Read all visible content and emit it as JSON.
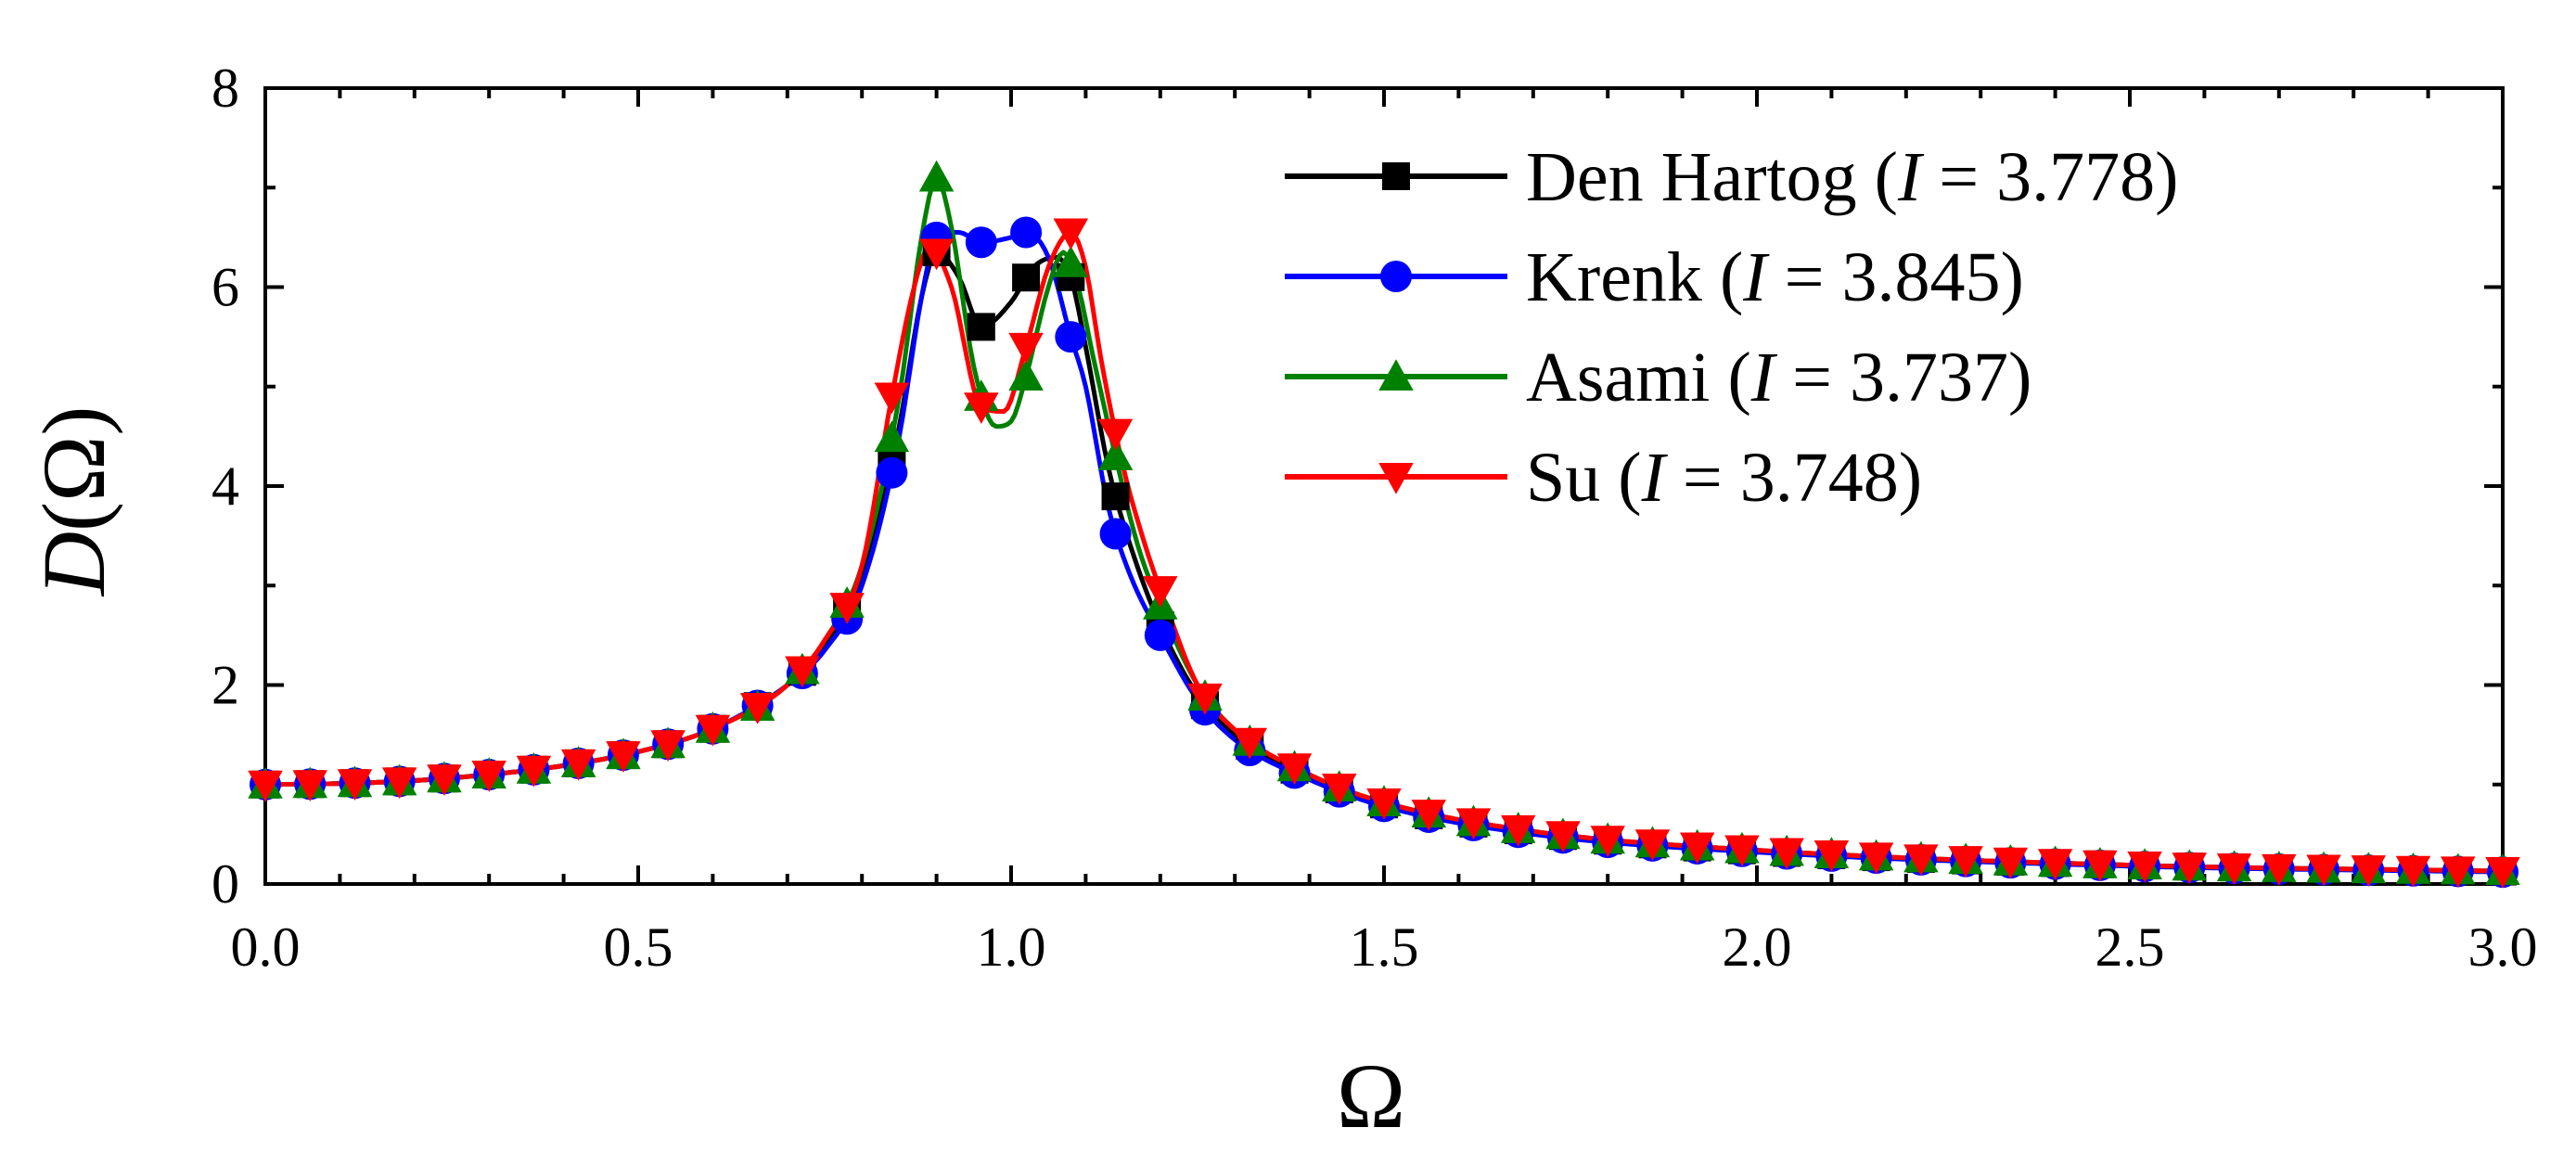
{
  "chart_data": {
    "type": "line",
    "xlabel": "Ω",
    "ylabel_italic": "D",
    "ylabel_rest": "(Ω)",
    "xlim": [
      0,
      3
    ],
    "ylim": [
      0,
      8
    ],
    "x_ticks": [
      "0.0",
      "0.5",
      "1.0",
      "1.5",
      "2.0",
      "2.5",
      "3.0"
    ],
    "x_tick_values": [
      0,
      0.5,
      1,
      1.5,
      2,
      2.5,
      3
    ],
    "y_ticks": [
      "0",
      "2",
      "4",
      "6",
      "8"
    ],
    "y_tick_values": [
      0,
      2,
      4,
      6,
      8
    ],
    "grid": false,
    "legend_position": "top-right",
    "series": [
      {
        "name": "Den Hartog",
        "legend_italic": "I",
        "legend_value": "3.778",
        "color": "#000000",
        "marker": "square",
        "x": [
          0,
          0.1,
          0.2,
          0.3,
          0.4,
          0.5,
          0.6,
          0.7,
          0.75,
          0.8,
          0.85,
          0.88,
          0.9,
          0.93,
          0.96,
          1.0,
          1.03,
          1.06,
          1.08,
          1.1,
          1.13,
          1.16,
          1.2,
          1.25,
          1.3,
          1.4,
          1.5,
          1.7,
          2.0,
          2.5,
          3.0
        ],
        "y": [
          1.0,
          1.01,
          1.04,
          1.1,
          1.19,
          1.33,
          1.56,
          2.0,
          2.4,
          3.1,
          4.6,
          5.9,
          6.35,
          6.1,
          5.6,
          5.85,
          6.2,
          6.3,
          6.1,
          5.4,
          4.2,
          3.4,
          2.6,
          1.9,
          1.5,
          1.08,
          0.8,
          0.52,
          0.33,
          0.19,
          0.125
        ]
      },
      {
        "name": "Krenk",
        "legend_italic": "I",
        "legend_value": "3.845",
        "color": "#0000ff",
        "marker": "circle",
        "x": [
          0,
          0.1,
          0.2,
          0.3,
          0.4,
          0.5,
          0.6,
          0.7,
          0.75,
          0.8,
          0.85,
          0.88,
          0.9,
          0.93,
          0.96,
          1.0,
          1.02,
          1.05,
          1.08,
          1.1,
          1.13,
          1.16,
          1.2,
          1.25,
          1.3,
          1.4,
          1.5,
          1.7,
          2.0,
          2.5,
          3.0
        ],
        "y": [
          1.0,
          1.01,
          1.04,
          1.1,
          1.19,
          1.33,
          1.56,
          2.0,
          2.35,
          3.0,
          4.5,
          5.9,
          6.5,
          6.55,
          6.45,
          6.5,
          6.55,
          6.3,
          5.5,
          5.0,
          3.8,
          3.1,
          2.5,
          1.85,
          1.45,
          1.05,
          0.78,
          0.5,
          0.32,
          0.18,
          0.12
        ]
      },
      {
        "name": "Asami",
        "legend_italic": "I",
        "legend_value": "3.737",
        "color": "#008000",
        "marker": "triangle-up",
        "x": [
          0,
          0.1,
          0.2,
          0.3,
          0.4,
          0.5,
          0.6,
          0.7,
          0.75,
          0.8,
          0.85,
          0.88,
          0.9,
          0.92,
          0.95,
          0.98,
          1.0,
          1.02,
          1.05,
          1.07,
          1.09,
          1.11,
          1.14,
          1.17,
          1.2,
          1.25,
          1.3,
          1.4,
          1.5,
          1.7,
          2.0,
          2.5,
          3.0
        ],
        "y": [
          1.0,
          1.01,
          1.04,
          1.1,
          1.19,
          1.33,
          1.56,
          2.0,
          2.45,
          3.2,
          4.9,
          6.5,
          7.1,
          6.6,
          5.2,
          4.6,
          4.65,
          5.1,
          6.0,
          6.35,
          6.0,
          5.3,
          4.3,
          3.4,
          2.8,
          2.0,
          1.55,
          1.1,
          0.82,
          0.53,
          0.34,
          0.19,
          0.13
        ]
      },
      {
        "name": "Su",
        "legend_italic": "I",
        "legend_value": "3.748",
        "color": "#ff0000",
        "marker": "triangle-down",
        "x": [
          0,
          0.1,
          0.2,
          0.3,
          0.4,
          0.5,
          0.6,
          0.7,
          0.75,
          0.8,
          0.84,
          0.87,
          0.89,
          0.92,
          0.96,
          0.99,
          1.02,
          1.05,
          1.08,
          1.1,
          1.12,
          1.15,
          1.18,
          1.21,
          1.25,
          1.3,
          1.4,
          1.5,
          1.7,
          2.0,
          2.5,
          3.0
        ],
        "y": [
          1.0,
          1.01,
          1.04,
          1.1,
          1.19,
          1.33,
          1.56,
          2.0,
          2.45,
          3.2,
          4.9,
          6.0,
          6.4,
          6.0,
          4.8,
          4.75,
          5.4,
          6.2,
          6.55,
          6.2,
          5.3,
          4.2,
          3.4,
          2.75,
          2.0,
          1.55,
          1.1,
          0.82,
          0.53,
          0.34,
          0.19,
          0.13
        ]
      }
    ]
  }
}
